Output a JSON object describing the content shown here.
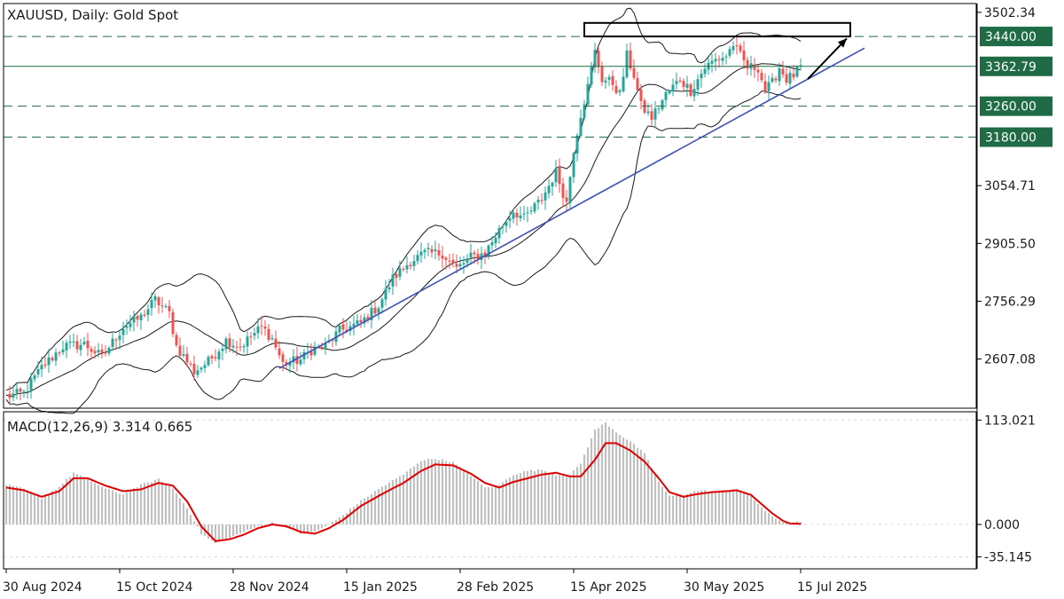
{
  "colors": {
    "bull": "#26a69a",
    "bear": "#ef5350",
    "band": "#1a1a1a",
    "trendline": "#3f51b5",
    "macd": "#e00000",
    "hist": "#c0c0c0",
    "level": "#1f6b45",
    "tag_bg": "#1f6b45",
    "grid": "#d9d9d9"
  },
  "chart_data": [
    {
      "type": "candlestick",
      "title": "XAUUSD, Daily:  Gold Spot",
      "y_ticks": [
        "3502.34",
        "3054.71",
        "2905.50",
        "2756.29",
        "2607.08"
      ],
      "y_tick_values": [
        3502.34,
        3054.71,
        2905.5,
        2756.29,
        2607.08
      ],
      "ylim": [
        2480,
        3525
      ],
      "x_ticks": [
        "30 Aug 2024",
        "15 Oct 2024",
        "28 Nov 2024",
        "15 Jan 2025",
        "28 Feb 2025",
        "15 Apr 2025",
        "30 May 2025",
        "15 Jul 2025"
      ],
      "x_tick_index": [
        0,
        32,
        64,
        96,
        128,
        160,
        192,
        224
      ],
      "bar_count": 224,
      "series_anchors": [
        [
          0,
          2510
        ],
        [
          5,
          2520
        ],
        [
          10,
          2585
        ],
        [
          16,
          2640
        ],
        [
          22,
          2645
        ],
        [
          27,
          2612
        ],
        [
          33,
          2690
        ],
        [
          38,
          2715
        ],
        [
          42,
          2760
        ],
        [
          46,
          2725
        ],
        [
          48,
          2640
        ],
        [
          53,
          2575
        ],
        [
          57,
          2600
        ],
        [
          62,
          2655
        ],
        [
          66,
          2640
        ],
        [
          72,
          2690
        ],
        [
          75,
          2660
        ],
        [
          78,
          2595
        ],
        [
          83,
          2605
        ],
        [
          86,
          2630
        ],
        [
          90,
          2640
        ],
        [
          94,
          2680
        ],
        [
          100,
          2700
        ],
        [
          105,
          2745
        ],
        [
          109,
          2815
        ],
        [
          114,
          2860
        ],
        [
          118,
          2880
        ],
        [
          123,
          2880
        ],
        [
          127,
          2840
        ],
        [
          131,
          2870
        ],
        [
          135,
          2880
        ],
        [
          139,
          2940
        ],
        [
          143,
          2990
        ],
        [
          146,
          2970
        ],
        [
          151,
          3020
        ],
        [
          155,
          3090
        ],
        [
          158,
          3010
        ],
        [
          160,
          3150
        ],
        [
          162,
          3240
        ],
        [
          164,
          3310
        ],
        [
          166,
          3400
        ],
        [
          168,
          3330
        ],
        [
          171,
          3320
        ],
        [
          173,
          3290
        ],
        [
          175,
          3390
        ],
        [
          177,
          3340
        ],
        [
          179,
          3260
        ],
        [
          182,
          3230
        ],
        [
          186,
          3290
        ],
        [
          190,
          3330
        ],
        [
          193,
          3300
        ],
        [
          197,
          3360
        ],
        [
          200,
          3380
        ],
        [
          203,
          3390
        ],
        [
          205,
          3420
        ],
        [
          207,
          3390
        ],
        [
          209,
          3360
        ],
        [
          212,
          3360
        ],
        [
          214,
          3300
        ],
        [
          216,
          3320
        ],
        [
          218,
          3360
        ],
        [
          220,
          3330
        ],
        [
          222,
          3340
        ],
        [
          224,
          3360
        ]
      ],
      "horizontal_levels": [
        {
          "value": 3440.0,
          "label": "3440.00",
          "style": "dashed"
        },
        {
          "value": 3362.79,
          "label": "3362.79",
          "style": "solid"
        },
        {
          "value": 3260.0,
          "label": "3260.00",
          "style": "dashed"
        },
        {
          "value": 3180.0,
          "label": "3180.00",
          "style": "dashed"
        }
      ],
      "trendline": {
        "from": [
          77,
          2583
        ],
        "to": [
          242,
          3410
        ]
      },
      "resistance_box": {
        "x_range": [
          163,
          238
        ],
        "y_range": [
          3440,
          3475
        ]
      },
      "arrow": {
        "from": [
          226,
          3330
        ],
        "to": [
          237,
          3435
        ]
      }
    },
    {
      "type": "macd",
      "title": "MACD(12,26,9) 3.314 0.665",
      "y_ticks": [
        "113.021",
        "0.000",
        "-35.145"
      ],
      "y_tick_values": [
        113.021,
        0,
        -35.145
      ],
      "ylim": [
        -48,
        122
      ],
      "macd_anchors": [
        [
          0,
          42
        ],
        [
          5,
          38
        ],
        [
          10,
          28
        ],
        [
          15,
          40
        ],
        [
          19,
          55
        ],
        [
          23,
          48
        ],
        [
          28,
          38
        ],
        [
          33,
          32
        ],
        [
          38,
          42
        ],
        [
          43,
          48
        ],
        [
          47,
          38
        ],
        [
          51,
          18
        ],
        [
          55,
          -10
        ],
        [
          59,
          -20
        ],
        [
          63,
          -14
        ],
        [
          67,
          -8
        ],
        [
          71,
          -2
        ],
        [
          75,
          2
        ],
        [
          79,
          -3
        ],
        [
          83,
          -10
        ],
        [
          87,
          -8
        ],
        [
          91,
          0
        ],
        [
          95,
          10
        ],
        [
          100,
          25
        ],
        [
          106,
          40
        ],
        [
          112,
          53
        ],
        [
          117,
          68
        ],
        [
          121,
          70
        ],
        [
          126,
          66
        ],
        [
          131,
          52
        ],
        [
          135,
          39
        ],
        [
          139,
          42
        ],
        [
          143,
          53
        ],
        [
          147,
          57
        ],
        [
          151,
          58
        ],
        [
          155,
          53
        ],
        [
          159,
          52
        ],
        [
          162,
          65
        ],
        [
          166,
          100
        ],
        [
          169,
          108
        ],
        [
          172,
          98
        ],
        [
          176,
          88
        ],
        [
          180,
          75
        ],
        [
          184,
          45
        ],
        [
          187,
          30
        ],
        [
          191,
          32
        ],
        [
          195,
          36
        ],
        [
          199,
          35
        ],
        [
          203,
          36
        ],
        [
          206,
          38
        ],
        [
          210,
          30
        ],
        [
          213,
          18
        ],
        [
          216,
          8
        ],
        [
          219,
          3
        ],
        [
          221,
          1
        ],
        [
          224,
          3.314
        ]
      ],
      "signal_anchors": [
        [
          0,
          40
        ],
        [
          5,
          37
        ],
        [
          10,
          30
        ],
        [
          15,
          36
        ],
        [
          19,
          50
        ],
        [
          23,
          50
        ],
        [
          28,
          42
        ],
        [
          33,
          36
        ],
        [
          38,
          38
        ],
        [
          43,
          45
        ],
        [
          47,
          42
        ],
        [
          51,
          25
        ],
        [
          55,
          -2
        ],
        [
          59,
          -18
        ],
        [
          63,
          -16
        ],
        [
          67,
          -11
        ],
        [
          71,
          -4
        ],
        [
          75,
          0
        ],
        [
          79,
          -2
        ],
        [
          83,
          -8
        ],
        [
          87,
          -10
        ],
        [
          91,
          -4
        ],
        [
          95,
          5
        ],
        [
          100,
          20
        ],
        [
          106,
          33
        ],
        [
          112,
          45
        ],
        [
          117,
          58
        ],
        [
          121,
          65
        ],
        [
          126,
          64
        ],
        [
          131,
          55
        ],
        [
          135,
          45
        ],
        [
          139,
          40
        ],
        [
          143,
          46
        ],
        [
          147,
          50
        ],
        [
          151,
          54
        ],
        [
          155,
          56
        ],
        [
          159,
          52
        ],
        [
          162,
          52
        ],
        [
          166,
          70
        ],
        [
          169,
          88
        ],
        [
          172,
          88
        ],
        [
          176,
          80
        ],
        [
          180,
          68
        ],
        [
          184,
          50
        ],
        [
          187,
          35
        ],
        [
          191,
          30
        ],
        [
          195,
          33
        ],
        [
          199,
          35
        ],
        [
          203,
          36
        ],
        [
          206,
          37
        ],
        [
          210,
          32
        ],
        [
          213,
          22
        ],
        [
          216,
          12
        ],
        [
          219,
          4
        ],
        [
          221,
          1
        ],
        [
          224,
          0.665
        ]
      ]
    }
  ]
}
